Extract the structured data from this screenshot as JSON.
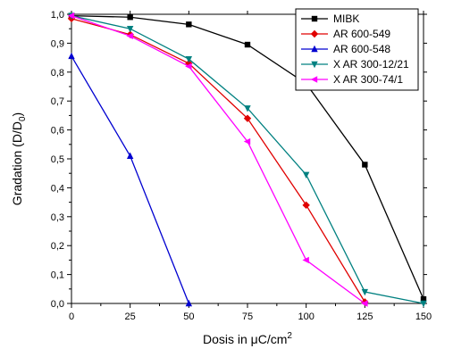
{
  "chart_data": {
    "type": "line",
    "xlabel": "Dosis in μC/cm",
    "xlabel_sup": "2",
    "ylabel": "Gradation (D/D",
    "ylabel_sub": "0",
    "ylabel_end": ")",
    "xlim": [
      0,
      150
    ],
    "ylim": [
      0,
      1.0
    ],
    "x_ticks": [
      0,
      25,
      50,
      75,
      100,
      125,
      150
    ],
    "y_ticks": [
      0,
      0.1,
      0.2,
      0.3,
      0.4,
      0.5,
      0.6,
      0.7,
      0.8,
      0.9,
      1.0
    ],
    "y_tick_labels": [
      "0,0",
      "0,1",
      "0,2",
      "0,3",
      "0,4",
      "0,5",
      "0,6",
      "0,7",
      "0,8",
      "0,9",
      "1,0"
    ],
    "grid": false,
    "legend_position": "top-right",
    "series": [
      {
        "name": "MIBK",
        "color": "#000000",
        "marker": "square",
        "x": [
          0,
          25,
          50,
          75,
          100,
          125,
          150
        ],
        "y": [
          0.995,
          0.99,
          0.965,
          0.895,
          0.76,
          0.48,
          0.015
        ]
      },
      {
        "name": "AR 600-549",
        "color": "#e00000",
        "marker": "diamond",
        "x": [
          0,
          25,
          50,
          75,
          100,
          125
        ],
        "y": [
          0.985,
          0.93,
          0.83,
          0.64,
          0.34,
          0.005
        ]
      },
      {
        "name": "AR 600-548",
        "color": "#0000d0",
        "marker": "triangle-up",
        "x": [
          0,
          25,
          50
        ],
        "y": [
          0.855,
          0.51,
          0.0
        ]
      },
      {
        "name": "X AR 300-12/21",
        "color": "#008080",
        "marker": "triangle-down",
        "x": [
          0,
          25,
          50,
          75,
          100,
          125,
          150
        ],
        "y": [
          0.995,
          0.95,
          0.845,
          0.675,
          0.445,
          0.04,
          0.0
        ]
      },
      {
        "name": "X AR 300-74/1",
        "color": "#ff00ff",
        "marker": "triangle-left",
        "x": [
          0,
          25,
          50,
          75,
          100,
          125
        ],
        "y": [
          0.995,
          0.925,
          0.82,
          0.56,
          0.15,
          0.0
        ]
      }
    ]
  }
}
